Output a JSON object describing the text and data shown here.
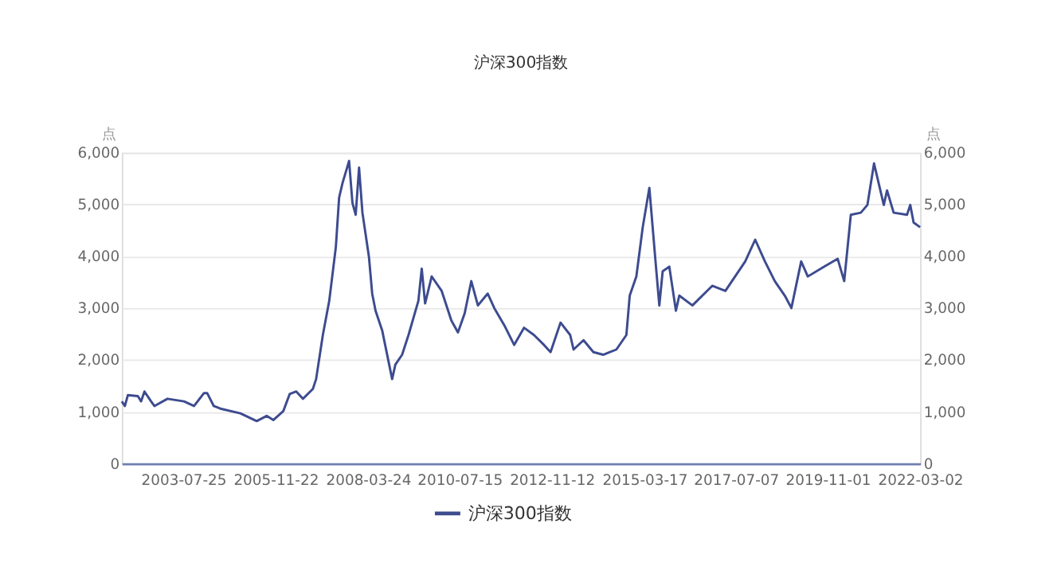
{
  "chart_data": {
    "type": "line",
    "title": "沪深300指数",
    "ylabel": "点",
    "y2label": "点",
    "x": [
      "2002-01-04",
      "2002-02",
      "2002-03",
      "2002-06",
      "2002-07",
      "2002-08",
      "2002-10",
      "2002-11",
      "2003-03",
      "2003-08",
      "2003-11",
      "2004-02",
      "2004-03",
      "2004-05",
      "2004-07",
      "2005-01",
      "2005-06",
      "2005-09",
      "2005-11",
      "2006-02",
      "2006-04",
      "2006-06",
      "2006-08",
      "2006-11",
      "2006-12",
      "2007-02",
      "2007-04",
      "2007-06",
      "2007-07",
      "2007-08",
      "2007-10",
      "2007-11",
      "2007-12",
      "2008-01",
      "2008-02",
      "2008-04",
      "2008-05",
      "2008-06",
      "2008-08",
      "2008-11",
      "2008-12",
      "2009-02",
      "2009-04",
      "2009-07",
      "2009-08",
      "2009-09",
      "2009-11",
      "2010-02",
      "2010-05",
      "2010-07",
      "2010-09",
      "2010-11",
      "2011-01",
      "2011-04",
      "2011-06",
      "2011-09",
      "2011-12",
      "2012-03",
      "2012-06",
      "2012-09",
      "2012-11",
      "2013-02",
      "2013-05",
      "2013-06",
      "2013-09",
      "2013-12",
      "2014-03",
      "2014-07",
      "2014-10",
      "2014-11",
      "2015-01",
      "2015-03",
      "2015-05",
      "2015-07",
      "2015-08",
      "2015-09",
      "2015-11",
      "2016-01",
      "2016-02",
      "2016-06",
      "2016-12",
      "2017-04",
      "2017-10",
      "2018-01",
      "2018-04",
      "2018-07",
      "2018-10",
      "2018-12",
      "2019-03",
      "2019-05",
      "2019-10",
      "2020-02",
      "2020-04",
      "2020-06",
      "2020-09",
      "2020-11",
      "2021-01",
      "2021-04",
      "2021-05",
      "2021-07",
      "2021-11",
      "2021-12",
      "2022-01",
      "2022-03-02"
    ],
    "series": [
      {
        "name": "沪深300指数",
        "color": "#3d4b8f",
        "values": [
          1200,
          1110,
          1320,
          1300,
          1200,
          1390,
          1200,
          1110,
          1250,
          1200,
          1110,
          1360,
          1360,
          1110,
          1060,
          970,
          820,
          920,
          840,
          1010,
          1340,
          1390,
          1250,
          1440,
          1630,
          2480,
          3140,
          4180,
          5130,
          5410,
          5840,
          5030,
          4800,
          5710,
          4840,
          3990,
          3280,
          2950,
          2570,
          1630,
          1910,
          2100,
          2480,
          3140,
          3760,
          3090,
          3610,
          3330,
          2760,
          2530,
          2900,
          3520,
          3050,
          3280,
          3000,
          2670,
          2290,
          2620,
          2480,
          2290,
          2150,
          2720,
          2480,
          2200,
          2380,
          2150,
          2100,
          2200,
          2480,
          3240,
          3610,
          4560,
          5320,
          3800,
          3050,
          3710,
          3800,
          2950,
          3240,
          3050,
          3430,
          3330,
          3900,
          4320,
          3900,
          3520,
          3240,
          3000,
          3900,
          3610,
          3800,
          3950,
          3520,
          4800,
          4840,
          4990,
          5790,
          4990,
          5270,
          4840,
          4800,
          4990,
          4650,
          4560
        ]
      }
    ],
    "xlim": [
      "2002-01-04",
      "2022-03-02"
    ],
    "xticks": [
      "2003-07-25",
      "2005-11-22",
      "2008-03-24",
      "2010-07-15",
      "2012-11-12",
      "2015-03-17",
      "2017-07-07",
      "2019-11-01",
      "2022-03-02"
    ],
    "ylim": [
      0,
      6000
    ],
    "yticks": [
      {
        "value": 0,
        "label": "0"
      },
      {
        "value": 1000,
        "label": "1,000"
      },
      {
        "value": 2000,
        "label": "2,000"
      },
      {
        "value": 3000,
        "label": "3,000"
      },
      {
        "value": 4000,
        "label": "4,000"
      },
      {
        "value": 5000,
        "label": "5,000"
      },
      {
        "value": 6000,
        "label": "6,000"
      }
    ],
    "y2lim": [
      0,
      6000
    ],
    "y2ticks": [
      {
        "value": 0,
        "label": "0"
      },
      {
        "value": 1000,
        "label": "1,000"
      },
      {
        "value": 2000,
        "label": "2,000"
      },
      {
        "value": 3000,
        "label": "3,000"
      },
      {
        "value": 4000,
        "label": "4,000"
      },
      {
        "value": 5000,
        "label": "5,000"
      },
      {
        "value": 6000,
        "label": "6,000"
      }
    ],
    "grid": "y",
    "legend": "bottom",
    "marker": "none",
    "line_style": "solid"
  }
}
